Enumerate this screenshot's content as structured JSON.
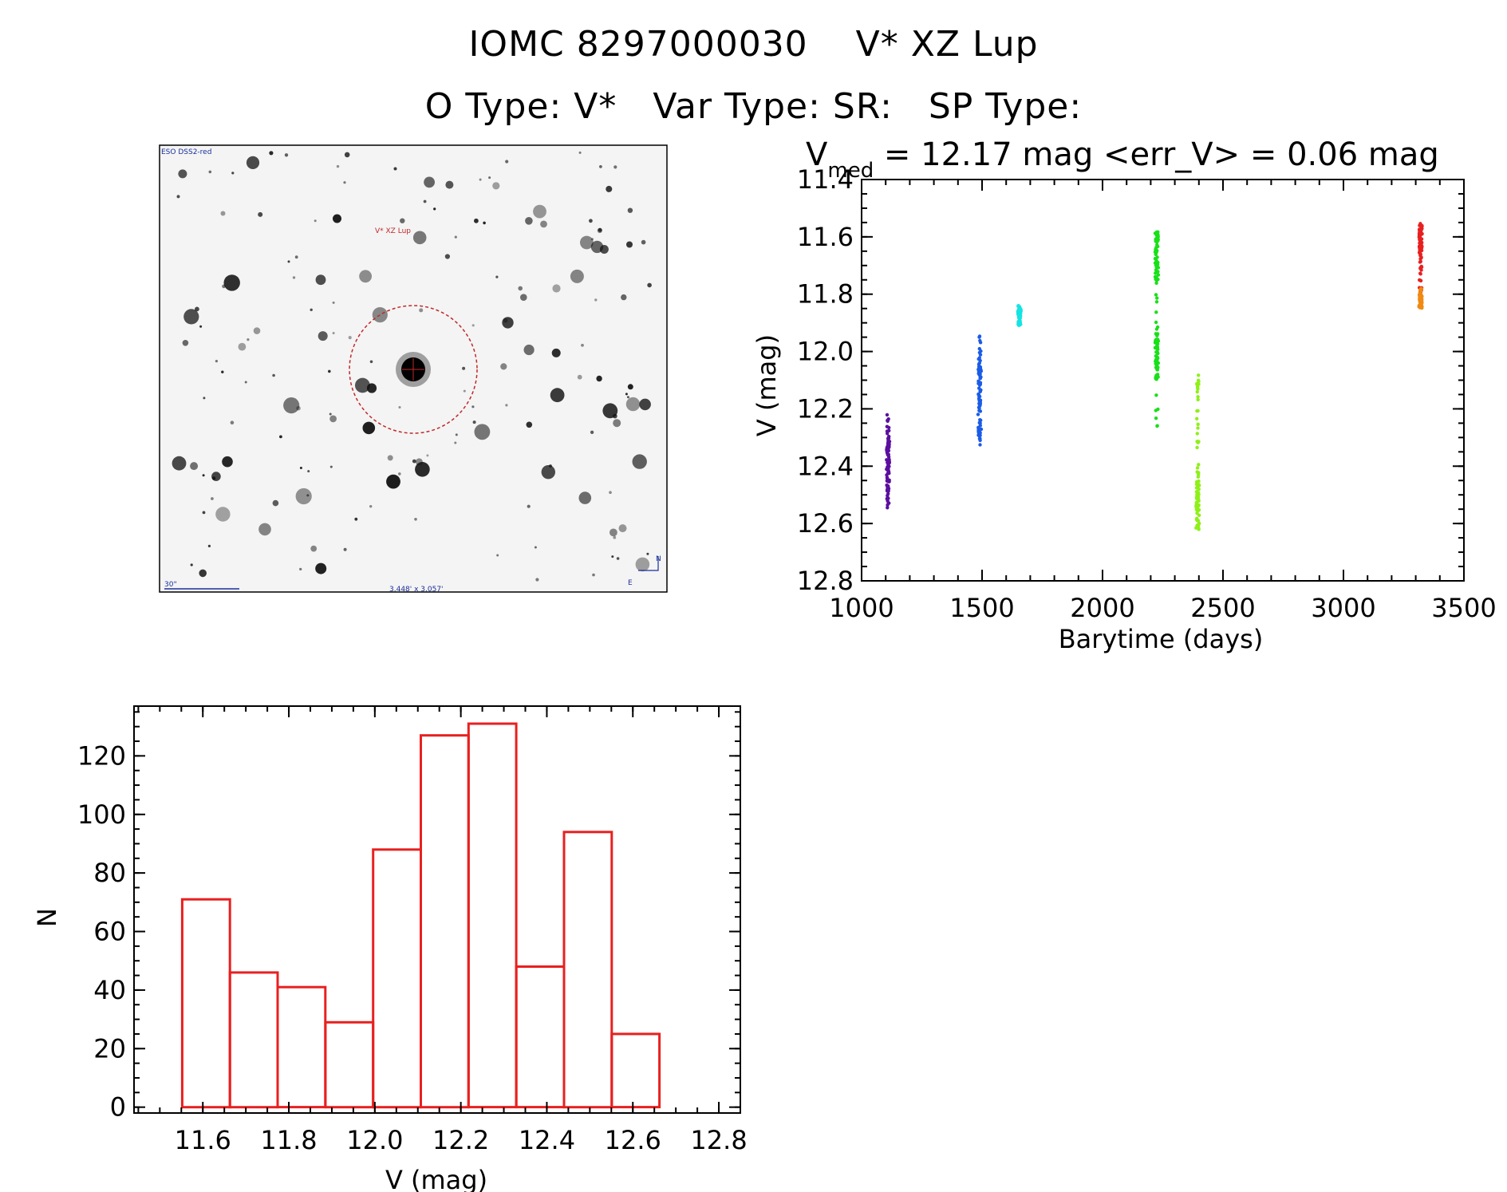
{
  "header": {
    "title_line1": "IOMC 8297000030    V* XZ Lup",
    "title_line2": "O Type: V*   Var Type: SR:   SP Type:"
  },
  "finder_image": {
    "survey_label": "ESO DSS2-red",
    "target_label": "V* XZ Lup",
    "scale_label": "30\"",
    "size_label": "3.448' x 3.057'",
    "north_label": "N",
    "east_label": "E",
    "colors": {
      "circle": "#c0282a",
      "label_blue": "#1a2f9c",
      "target_label": "#c0282a"
    }
  },
  "lightcurve": {
    "stat_prefix": "V",
    "stat_subscript": "med",
    "stat_text": " = 12.17 mag <err_V> = 0.06 mag"
  },
  "chart_data": [
    {
      "type": "scatter",
      "xlabel": "Barytime (days)",
      "ylabel": "V (mag)",
      "xlim": [
        1000,
        3500
      ],
      "ylim": [
        12.8,
        11.4
      ],
      "y_inverted": true,
      "xticks": [
        1000,
        1500,
        2000,
        2500,
        3000,
        3500
      ],
      "yticks": [
        11.4,
        11.6,
        11.8,
        12.0,
        12.2,
        12.4,
        12.6,
        12.8
      ],
      "series": [
        {
          "color": "#5b0f9e",
          "x": 1110,
          "y_min": 12.22,
          "y_max": 12.55,
          "dense": [
            [
              12.3,
              12.48
            ]
          ]
        },
        {
          "color": "#1b5ce6",
          "x": 1490,
          "y_min": 11.94,
          "y_max": 12.35,
          "dense": [
            [
              12.04,
              12.3
            ]
          ]
        },
        {
          "color": "#16e3e3",
          "x": 1655,
          "y_min": 11.84,
          "y_max": 11.91,
          "dense": [
            [
              11.85,
              11.87
            ]
          ]
        },
        {
          "color": "#18e018",
          "x": 2225,
          "y_min": 11.57,
          "y_max": 12.26,
          "dense": [
            [
              11.58,
              11.75
            ],
            [
              11.95,
              12.1
            ]
          ]
        },
        {
          "color": "#8ef018",
          "x": 2395,
          "y_min": 12.08,
          "y_max": 12.64,
          "dense": [
            [
              12.45,
              12.62
            ]
          ]
        },
        {
          "color": "#e82020",
          "x": 3320,
          "y_min": 11.55,
          "y_max": 11.8,
          "dense": [
            [
              11.56,
              11.66
            ]
          ]
        },
        {
          "color": "#f08a12",
          "x": 3320,
          "y_min": 11.78,
          "y_max": 11.85,
          "dense": [
            [
              11.8,
              11.85
            ]
          ]
        }
      ]
    },
    {
      "type": "bar",
      "xlabel": "V (mag)",
      "ylabel": "N",
      "xlim": [
        11.44,
        12.85
      ],
      "ylim": [
        -2,
        137
      ],
      "xticks": [
        "11.6",
        "11.8",
        "12.0",
        "12.2",
        "12.4",
        "12.6",
        "12.8"
      ],
      "yticks": [
        "0",
        "20",
        "40",
        "60",
        "80",
        "100",
        "120"
      ],
      "bin_edges": [
        11.552,
        11.663,
        11.774,
        11.885,
        11.996,
        12.107,
        12.218,
        12.329,
        12.44,
        12.551,
        12.662
      ],
      "values": [
        71,
        46,
        41,
        29,
        88,
        127,
        131,
        48,
        94,
        25
      ],
      "bar_color": "#e82020"
    }
  ]
}
